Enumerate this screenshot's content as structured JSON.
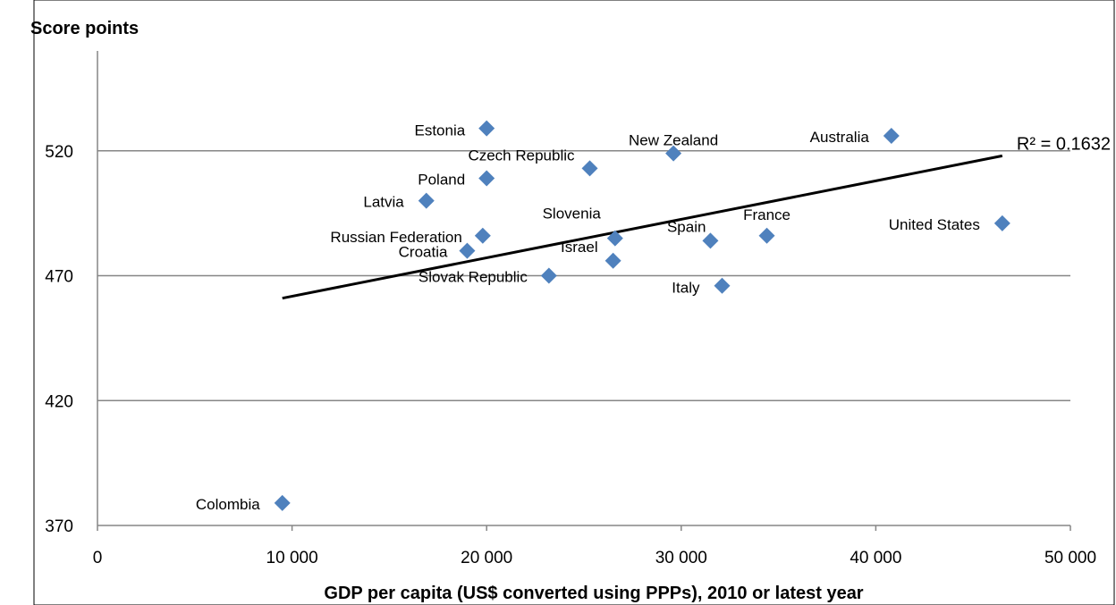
{
  "chart_data": {
    "type": "scatter",
    "title": "",
    "ylabel": "Score points",
    "xlabel": "GDP per capita (US$ converted using PPPs), 2010 or latest year",
    "xlim": [
      0,
      50000
    ],
    "ylim": [
      370,
      560
    ],
    "x_ticks": [
      0,
      10000,
      20000,
      30000,
      40000,
      50000
    ],
    "x_tick_labels": [
      "0",
      "10 000",
      "20 000",
      "30 000",
      "40 000",
      "50 000"
    ],
    "y_ticks": [
      370,
      420,
      470,
      520
    ],
    "y_tick_labels": [
      "370",
      "420",
      "470",
      "520"
    ],
    "grid": "horizontal",
    "marker_color": "#4F81BD",
    "trendline_color": "#000000",
    "points": [
      {
        "label": "Estonia",
        "x": 20000,
        "y": 529
      },
      {
        "label": "Australia",
        "x": 40800,
        "y": 526
      },
      {
        "label": "New Zealand",
        "x": 29600,
        "y": 519
      },
      {
        "label": "Czech Republic",
        "x": 25300,
        "y": 513
      },
      {
        "label": "Poland",
        "x": 20000,
        "y": 509
      },
      {
        "label": "Latvia",
        "x": 16900,
        "y": 500
      },
      {
        "label": "United States",
        "x": 46500,
        "y": 491
      },
      {
        "label": "Russian Federation",
        "x": 19800,
        "y": 486
      },
      {
        "label": "France",
        "x": 34400,
        "y": 486
      },
      {
        "label": "Slovenia",
        "x": 26600,
        "y": 485
      },
      {
        "label": "Spain",
        "x": 31500,
        "y": 484
      },
      {
        "label": "Croatia",
        "x": 19000,
        "y": 480
      },
      {
        "label": "Israel",
        "x": 26500,
        "y": 476
      },
      {
        "label": "Slovak Republic",
        "x": 23200,
        "y": 470
      },
      {
        "label": "Italy",
        "x": 32100,
        "y": 466
      },
      {
        "label": "Colombia",
        "x": 9500,
        "y": 379
      }
    ],
    "trendline": {
      "x": [
        9500,
        46500
      ],
      "y": [
        461,
        518
      ],
      "r2_label": "R² = 0.1632"
    }
  }
}
